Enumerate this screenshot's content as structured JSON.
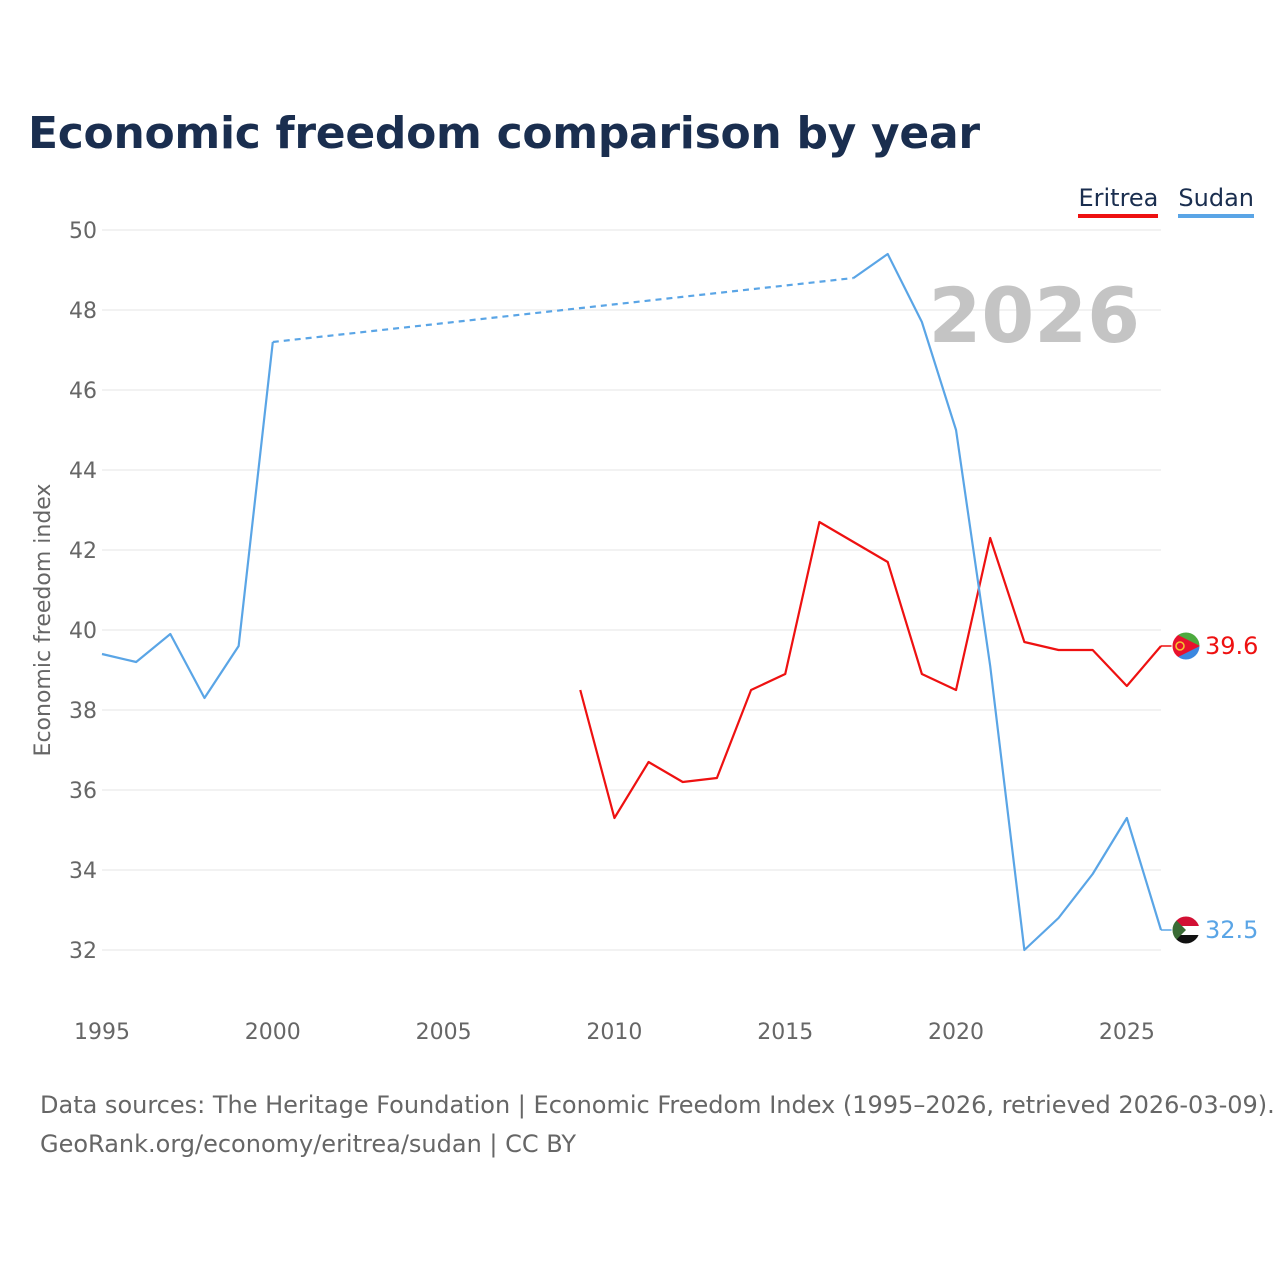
{
  "chart_data": {
    "type": "line",
    "title": "Economic freedom comparison by year",
    "ylabel": "Economic freedom index",
    "xlabel": "",
    "xlim": [
      1995,
      2026
    ],
    "ylim": [
      31,
      50
    ],
    "yticks": [
      32,
      34,
      36,
      38,
      40,
      42,
      44,
      46,
      48,
      50
    ],
    "xticks": [
      1995,
      2000,
      2005,
      2010,
      2015,
      2020,
      2025
    ],
    "year_stamp": "2026",
    "legend_position": "top-right",
    "series": [
      {
        "name": "Eritrea",
        "color": "#ee1111",
        "x": [
          2009,
          2010,
          2011,
          2012,
          2013,
          2014,
          2015,
          2016,
          2017,
          2018,
          2019,
          2020,
          2021,
          2022,
          2023,
          2024,
          2025,
          2026
        ],
        "values": [
          38.5,
          35.3,
          36.7,
          36.2,
          36.3,
          38.5,
          38.9,
          42.7,
          42.2,
          41.7,
          38.9,
          38.5,
          42.3,
          39.7,
          39.5,
          39.5,
          38.6,
          39.6
        ],
        "end_label": "39.6",
        "flag_icon": "eritrea-flag-icon"
      },
      {
        "name": "Sudan",
        "color": "#5aa5e6",
        "x": [
          1995,
          1996,
          1997,
          1998,
          1999,
          2000,
          2017,
          2018,
          2019,
          2020,
          2021,
          2022,
          2023,
          2024,
          2025,
          2026
        ],
        "values": [
          39.4,
          39.2,
          39.9,
          38.3,
          39.6,
          47.2,
          48.8,
          49.4,
          47.7,
          45.0,
          39.1,
          32.0,
          32.8,
          33.9,
          35.3,
          32.5
        ],
        "gap_after_index": 5,
        "end_label": "32.5",
        "flag_icon": "sudan-flag-icon"
      }
    ],
    "source": "Data sources: The Heritage Foundation | Economic Freedom Index (1995–2026, retrieved 2026-03-09).",
    "attribution": "GeoRank.org/economy/eritrea/sudan | CC BY"
  }
}
